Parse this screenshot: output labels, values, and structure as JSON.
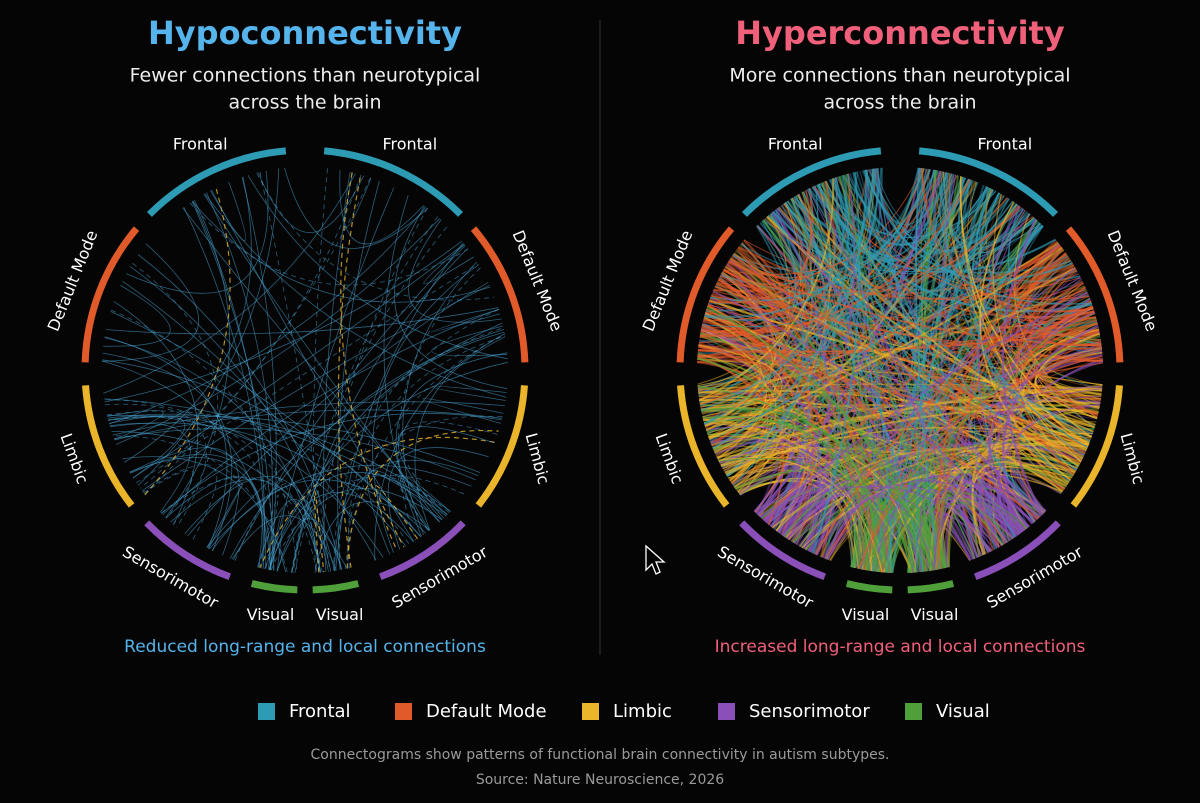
{
  "panels": [
    {
      "title": "Hypoconnectivity",
      "color": "#56b4ec",
      "subtitle_lines": [
        "Fewer connections than neurotypical",
        "across the brain"
      ],
      "segments": [
        "Frontal",
        "Frontal",
        "Default Mode",
        "Limbic",
        "Sensorimotor",
        "Visual",
        "Visual",
        "Sensorimotor",
        "Limbic",
        "Default Mode"
      ],
      "caption": "Reduced long-range and local connections"
    },
    {
      "title": "Hyperconnectivity",
      "color": "#f0607a",
      "subtitle_lines": [
        "More connections than neurotypical",
        "across the brain"
      ],
      "segments": [
        "Frontal",
        "Frontal",
        "Default Mode",
        "Limbic",
        "Sensorimotor",
        "Visual",
        "Visual",
        "Sensorimotor",
        "Limbic",
        "Default Mode"
      ],
      "caption": "Increased long-range and local connections"
    }
  ],
  "legend": [
    {
      "label": "Frontal",
      "color": "#2e9bb5"
    },
    {
      "label": "Default Mode",
      "color": "#e05a2a"
    },
    {
      "label": "Limbic",
      "color": "#eab52a"
    },
    {
      "label": "Sensorimotor",
      "color": "#8a4fb8"
    },
    {
      "label": "Visual",
      "color": "#4fa03a"
    }
  ],
  "footnote": "Connectograms show patterns of functional brain connectivity in autism subtypes.",
  "source": "Source: Nature Neuroscience, 2026"
}
